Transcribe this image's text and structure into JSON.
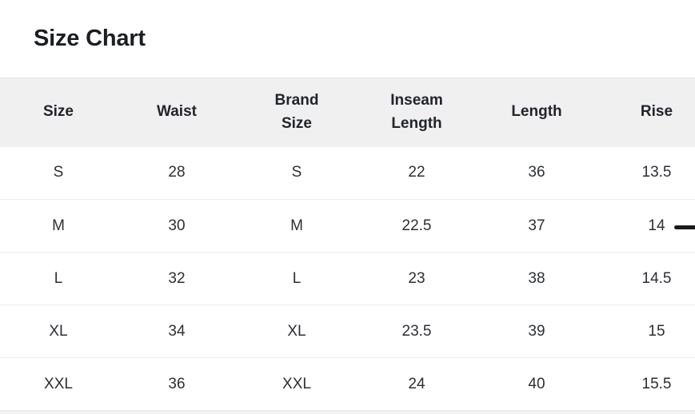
{
  "title": "Size Chart",
  "table": {
    "columns": [
      "Size",
      "Waist",
      "Brand Size",
      "Inseam Length",
      "Length",
      "Rise"
    ],
    "rows": [
      [
        "S",
        "28",
        "S",
        "22",
        "36",
        "13.5"
      ],
      [
        "M",
        "30",
        "M",
        "22.5",
        "37",
        "14"
      ],
      [
        "L",
        "32",
        "L",
        "23",
        "38",
        "14.5"
      ],
      [
        "XL",
        "34",
        "XL",
        "23.5",
        "39",
        "15"
      ],
      [
        "XXL",
        "36",
        "XXL",
        "24",
        "40",
        "15.5"
      ]
    ]
  },
  "annotation": {
    "dash_marker": "—",
    "dash_marker_row": "M",
    "dash_color": "#1a1a1a"
  },
  "colors": {
    "header_bg": "#f0f0f1",
    "header_top_border": "#e3e3e5",
    "row_border": "#ececee",
    "title_text": "#1b1e23",
    "cell_text": "#2c2f34",
    "bottom_strip": "#f3f3f4"
  }
}
